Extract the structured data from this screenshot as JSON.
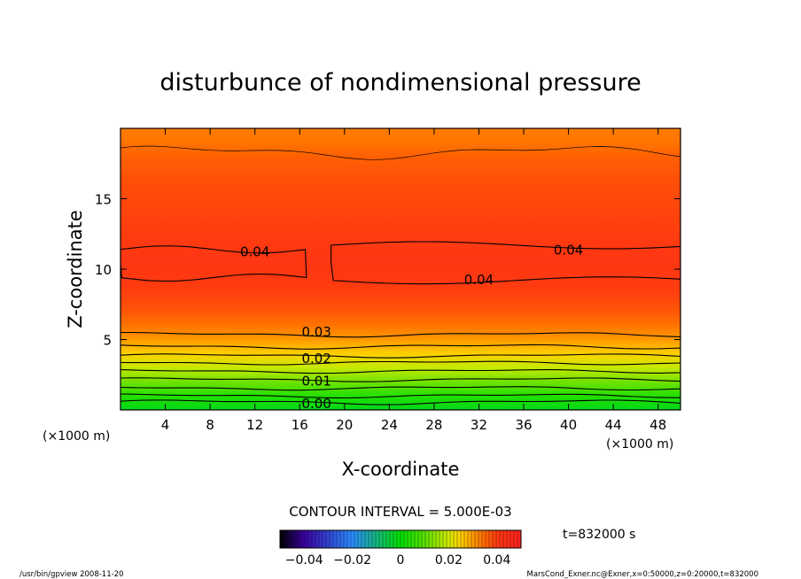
{
  "chart_data": {
    "type": "heatmap",
    "title": "disturbunce of nondimensional pressure",
    "xlabel": "X-coordinate",
    "ylabel": "Z-coordinate",
    "x_unit_left": "(×1000 m)",
    "x_unit_right": "(×1000 m)",
    "xlim": [
      0,
      50
    ],
    "ylim": [
      0,
      20
    ],
    "xticks": [
      4,
      8,
      12,
      16,
      20,
      24,
      28,
      32,
      36,
      40,
      44,
      48
    ],
    "yticks": [
      5,
      10,
      15
    ],
    "contour_interval_text": "CONTOUR INTERVAL = 5.000E-03",
    "time_label": "t=832000 s",
    "colorbar": {
      "range": [
        -0.05,
        0.05
      ],
      "ticks": [
        -0.04,
        -0.02,
        0,
        0.02,
        0.04
      ],
      "tick_labels": [
        "−0.04",
        "−0.02",
        "0",
        "0.02",
        "0.04"
      ]
    },
    "contour_labels": [
      {
        "text": "0.04",
        "x": 12,
        "z": 11.3
      },
      {
        "text": "0.04",
        "x": 40,
        "z": 11.4
      },
      {
        "text": "0.04",
        "x": 32,
        "z": 9.3
      },
      {
        "text": "0.03",
        "x": 17.5,
        "z": 5.6
      },
      {
        "text": "0.02",
        "x": 17.5,
        "z": 3.7
      },
      {
        "text": "0.01",
        "x": 17.5,
        "z": 2.1
      },
      {
        "text": "0.00",
        "x": 17.5,
        "z": 0.5
      }
    ],
    "field_profile": {
      "z": [
        0,
        1,
        2,
        3,
        4,
        5,
        6,
        7,
        8,
        9,
        10,
        11,
        12,
        14,
        16,
        18,
        19,
        20
      ],
      "value": [
        -0.002,
        0.004,
        0.012,
        0.019,
        0.025,
        0.03,
        0.034,
        0.037,
        0.039,
        0.04,
        0.041,
        0.041,
        0.04,
        0.039,
        0.038,
        0.036,
        0.034,
        0.033
      ]
    },
    "colors": {
      "-0.05": "#000000",
      "-0.04": "#3a00a0",
      "-0.02": "#2a8bff",
      "0.00": "#00e000",
      "0.01": "#5ae000",
      "0.02": "#d2ea00",
      "0.025": "#ffd000",
      "0.03": "#ff9a00",
      "0.035": "#ff6a00",
      "0.04": "#ff3a10",
      "0.05": "#ff2020"
    }
  },
  "footer": {
    "left": "/usr/bin/gpview   2008-11-20",
    "right": "MarsCond_Exner.nc@Exner,x=0:50000,z=0:20000,t=832000"
  }
}
